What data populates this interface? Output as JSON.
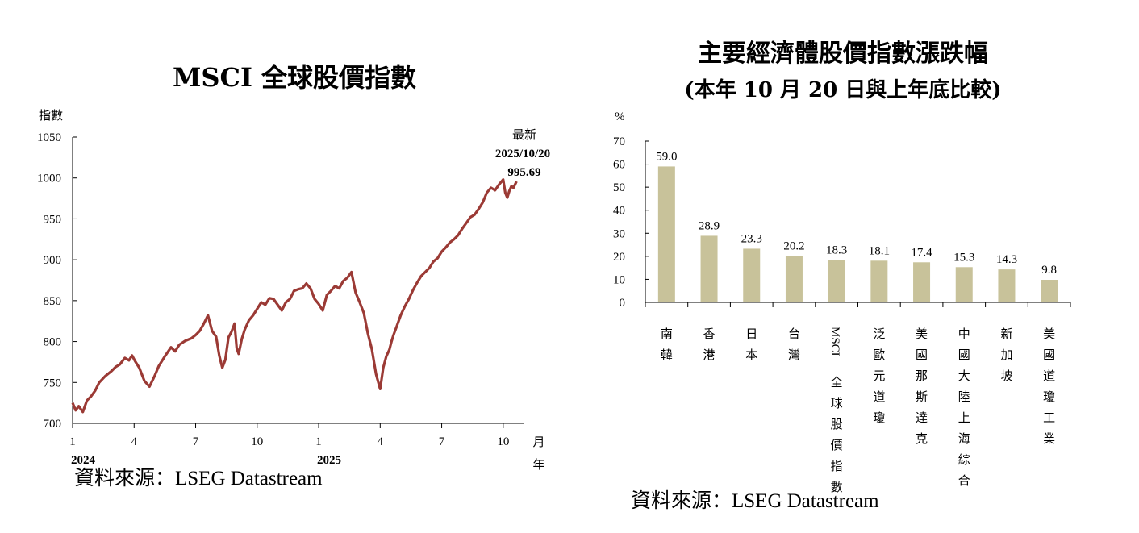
{
  "chart_data": [
    {
      "type": "line",
      "title": "MSCI 全球股價指數",
      "ylabel": "指數",
      "xlabel": "月",
      "xlabel2": "年",
      "ylim": [
        700,
        1050
      ],
      "yticks": [
        "700",
        "750",
        "800",
        "850",
        "900",
        "950",
        "1000",
        "1050"
      ],
      "xticks": [
        {
          "label": "1",
          "month": 0
        },
        {
          "label": "4",
          "month": 3
        },
        {
          "label": "7",
          "month": 6
        },
        {
          "label": "10",
          "month": 9
        },
        {
          "label": "1",
          "month": 12
        },
        {
          "label": "4",
          "month": 15
        },
        {
          "label": "7",
          "month": 18
        },
        {
          "label": "10",
          "month": 21
        }
      ],
      "year_labels": [
        {
          "label": "2024",
          "month": 0
        },
        {
          "label": "2025",
          "month": 12
        }
      ],
      "xlim": [
        0,
        21.8
      ],
      "series_color": "#9b3a35",
      "series": [
        {
          "month": [
            0,
            0.15,
            0.3,
            0.5,
            0.7,
            0.9,
            1.1,
            1.3,
            1.6,
            1.9,
            2.1,
            2.3,
            2.55,
            2.75,
            2.9,
            3.05,
            3.25,
            3.5,
            3.75,
            4.0,
            4.2,
            4.5,
            4.8,
            5.0,
            5.2,
            5.5,
            5.8,
            6.0,
            6.2,
            6.4,
            6.6,
            6.8,
            7.0,
            7.15,
            7.3,
            7.45,
            7.6,
            7.75,
            7.9,
            8.0,
            8.1,
            8.25,
            8.4,
            8.6,
            8.8,
            9.0,
            9.2,
            9.4,
            9.6,
            9.8,
            10.0,
            10.2,
            10.4,
            10.6,
            10.8,
            11.0,
            11.2,
            11.4,
            11.6,
            11.8,
            12.0,
            12.2,
            12.4,
            12.6,
            12.8,
            13.0,
            13.2,
            13.4,
            13.6,
            13.8,
            14.0,
            14.2,
            14.4,
            14.6,
            14.8,
            15.0,
            15.15,
            15.3,
            15.45,
            15.55,
            15.65,
            15.8,
            16.0,
            16.2,
            16.4,
            16.6,
            16.8,
            17.0,
            17.2,
            17.4,
            17.6,
            17.8,
            18.0,
            18.2,
            18.4,
            18.6,
            18.8,
            19.0,
            19.2,
            19.4,
            19.6,
            19.8,
            20.0,
            20.2,
            20.4,
            20.6,
            20.8,
            21.0,
            21.1,
            21.2,
            21.3,
            21.4,
            21.5,
            21.65
          ],
          "values": [
            725,
            716,
            721,
            714,
            728,
            733,
            740,
            750,
            758,
            764,
            769,
            772,
            780,
            777,
            783,
            776,
            768,
            752,
            745,
            758,
            770,
            782,
            793,
            788,
            796,
            801,
            804,
            808,
            813,
            822,
            832,
            813,
            806,
            783,
            768,
            778,
            805,
            812,
            822,
            792,
            785,
            803,
            815,
            826,
            832,
            840,
            848,
            845,
            853,
            852,
            845,
            838,
            848,
            852,
            862,
            864,
            865,
            871,
            865,
            852,
            846,
            838,
            857,
            862,
            868,
            865,
            874,
            878,
            885,
            860,
            848,
            835,
            810,
            790,
            760,
            742,
            768,
            782,
            790,
            800,
            808,
            818,
            832,
            843,
            852,
            863,
            872,
            880,
            885,
            890,
            898,
            902,
            910,
            915,
            921,
            925,
            930,
            938,
            945,
            952,
            955,
            962,
            970,
            982,
            988,
            985,
            992,
            998,
            982,
            976,
            984,
            990,
            988,
            995.69
          ]
        }
      ],
      "annotation": {
        "label1": "最新",
        "label2": "2025/10/20",
        "label3": "995.69"
      },
      "source": "資料來源：LSEG Datastream"
    },
    {
      "type": "bar",
      "title": "主要經濟體股價指數漲跌幅",
      "subtitle": "(本年 10 月 20 日與上年底比較)",
      "ylabel": "%",
      "ylim": [
        0,
        70
      ],
      "yticks": [
        "0",
        "10",
        "20",
        "30",
        "40",
        "50",
        "60",
        "70"
      ],
      "bar_color": "#c8c29a",
      "categories": [
        "南韓",
        "香港",
        "日本",
        "台灣",
        "MSCI全球股價指數",
        "泛歐元道瓊",
        "美國那斯達克",
        "中國大陸上海綜合",
        "新加坡",
        "美國道瓊工業"
      ],
      "values": [
        59.0,
        28.9,
        23.3,
        20.2,
        18.3,
        18.1,
        17.4,
        15.3,
        14.3,
        9.8
      ],
      "value_labels": [
        "59.0",
        "28.9",
        "23.3",
        "20.2",
        "18.3",
        "18.1",
        "17.4",
        "15.3",
        "14.3",
        "9.8"
      ],
      "source": "資料來源：LSEG Datastream"
    }
  ]
}
